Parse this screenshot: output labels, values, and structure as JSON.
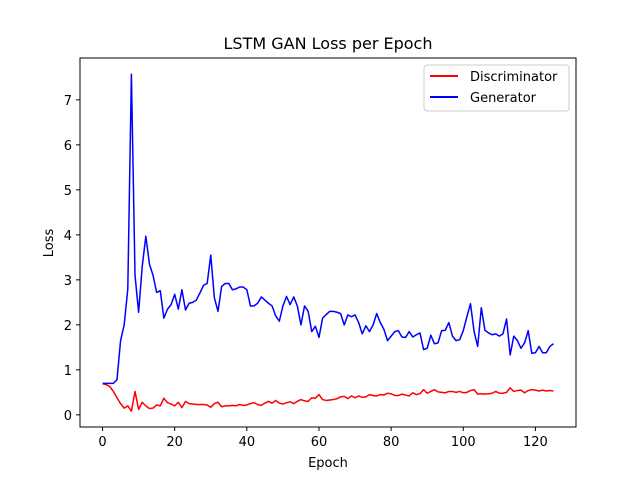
{
  "chart_data": {
    "type": "line",
    "title": "LSTM GAN Loss per Epoch",
    "xlabel": "Epoch",
    "ylabel": "Loss",
    "xlim": [
      -6.25,
      131.25
    ],
    "ylim": [
      -0.27,
      7.93
    ],
    "xticks": [
      0,
      20,
      40,
      60,
      80,
      100,
      120
    ],
    "yticks": [
      0,
      1,
      2,
      3,
      4,
      5,
      6,
      7
    ],
    "grid": false,
    "legend_position": "upper right",
    "series": [
      {
        "name": "Discriminator",
        "color": "#ff0000",
        "x": [
          0,
          1,
          2,
          3,
          4,
          5,
          6,
          7,
          8,
          9,
          10,
          11,
          12,
          13,
          14,
          15,
          16,
          17,
          18,
          19,
          20,
          21,
          22,
          23,
          24,
          25,
          26,
          27,
          28,
          29,
          30,
          31,
          32,
          33,
          34,
          35,
          36,
          37,
          38,
          39,
          40,
          41,
          42,
          43,
          44,
          45,
          46,
          47,
          48,
          49,
          50,
          51,
          52,
          53,
          54,
          55,
          56,
          57,
          58,
          59,
          60,
          61,
          62,
          63,
          64,
          65,
          66,
          67,
          68,
          69,
          70,
          71,
          72,
          73,
          74,
          75,
          76,
          77,
          78,
          79,
          80,
          81,
          82,
          83,
          84,
          85,
          86,
          87,
          88,
          89,
          90,
          91,
          92,
          93,
          94,
          95,
          96,
          97,
          98,
          99,
          100,
          101,
          102,
          103,
          104,
          105,
          106,
          107,
          108,
          109,
          110,
          111,
          112,
          113,
          114,
          115,
          116,
          117,
          118,
          119,
          120,
          121,
          122,
          123,
          124,
          125
        ],
        "y": [
          0.69,
          0.67,
          0.63,
          0.52,
          0.38,
          0.25,
          0.15,
          0.2,
          0.08,
          0.52,
          0.12,
          0.28,
          0.2,
          0.14,
          0.15,
          0.22,
          0.2,
          0.37,
          0.27,
          0.24,
          0.2,
          0.28,
          0.16,
          0.3,
          0.25,
          0.24,
          0.23,
          0.23,
          0.23,
          0.22,
          0.17,
          0.25,
          0.28,
          0.18,
          0.2,
          0.2,
          0.21,
          0.2,
          0.23,
          0.21,
          0.22,
          0.25,
          0.27,
          0.23,
          0.21,
          0.26,
          0.3,
          0.26,
          0.32,
          0.26,
          0.24,
          0.27,
          0.29,
          0.25,
          0.3,
          0.34,
          0.31,
          0.3,
          0.38,
          0.37,
          0.45,
          0.34,
          0.32,
          0.33,
          0.34,
          0.36,
          0.4,
          0.41,
          0.36,
          0.42,
          0.38,
          0.42,
          0.39,
          0.4,
          0.45,
          0.43,
          0.42,
          0.45,
          0.44,
          0.48,
          0.47,
          0.43,
          0.43,
          0.46,
          0.44,
          0.42,
          0.49,
          0.45,
          0.47,
          0.56,
          0.48,
          0.52,
          0.56,
          0.51,
          0.5,
          0.49,
          0.52,
          0.52,
          0.5,
          0.52,
          0.49,
          0.5,
          0.54,
          0.56,
          0.46,
          0.47,
          0.46,
          0.47,
          0.48,
          0.52,
          0.48,
          0.48,
          0.5,
          0.6,
          0.52,
          0.54,
          0.55,
          0.49,
          0.54,
          0.56,
          0.55,
          0.53,
          0.55,
          0.53,
          0.54,
          0.53
        ]
      },
      {
        "name": "Generator",
        "color": "#0000ff",
        "x": [
          0,
          1,
          2,
          3,
          4,
          5,
          6,
          7,
          8,
          9,
          10,
          11,
          12,
          13,
          14,
          15,
          16,
          17,
          18,
          19,
          20,
          21,
          22,
          23,
          24,
          25,
          26,
          27,
          28,
          29,
          30,
          31,
          32,
          33,
          34,
          35,
          36,
          37,
          38,
          39,
          40,
          41,
          42,
          43,
          44,
          45,
          46,
          47,
          48,
          49,
          50,
          51,
          52,
          53,
          54,
          55,
          56,
          57,
          58,
          59,
          60,
          61,
          62,
          63,
          64,
          65,
          66,
          67,
          68,
          69,
          70,
          71,
          72,
          73,
          74,
          75,
          76,
          77,
          78,
          79,
          80,
          81,
          82,
          83,
          84,
          85,
          86,
          87,
          88,
          89,
          90,
          91,
          92,
          93,
          94,
          95,
          96,
          97,
          98,
          99,
          100,
          101,
          102,
          103,
          104,
          105,
          106,
          107,
          108,
          109,
          110,
          111,
          112,
          113,
          114,
          115,
          116,
          117,
          118,
          119,
          120,
          121,
          122,
          123,
          124,
          125
        ],
        "y": [
          0.7,
          0.7,
          0.7,
          0.7,
          0.78,
          1.65,
          2.0,
          2.8,
          7.57,
          3.1,
          2.28,
          3.3,
          3.97,
          3.35,
          3.1,
          2.72,
          2.76,
          2.15,
          2.35,
          2.45,
          2.68,
          2.35,
          2.78,
          2.33,
          2.48,
          2.5,
          2.55,
          2.71,
          2.88,
          2.92,
          3.55,
          2.6,
          2.3,
          2.85,
          2.92,
          2.92,
          2.78,
          2.8,
          2.84,
          2.84,
          2.78,
          2.42,
          2.42,
          2.48,
          2.62,
          2.55,
          2.48,
          2.42,
          2.2,
          2.08,
          2.42,
          2.63,
          2.45,
          2.62,
          2.42,
          2.0,
          2.42,
          2.3,
          1.85,
          1.97,
          1.72,
          2.15,
          2.23,
          2.3,
          2.3,
          2.28,
          2.25,
          2.0,
          2.22,
          2.18,
          2.22,
          2.05,
          1.8,
          1.98,
          1.85,
          2.0,
          2.25,
          2.05,
          1.9,
          1.65,
          1.75,
          1.85,
          1.87,
          1.73,
          1.72,
          1.85,
          1.73,
          1.78,
          1.82,
          1.45,
          1.48,
          1.77,
          1.58,
          1.6,
          1.87,
          1.88,
          2.05,
          1.75,
          1.65,
          1.67,
          1.87,
          2.18,
          2.47,
          1.85,
          1.52,
          2.38,
          1.88,
          1.82,
          1.78,
          1.8,
          1.75,
          1.8,
          2.13,
          1.33,
          1.75,
          1.65,
          1.48,
          1.6,
          1.87,
          1.37,
          1.38,
          1.52,
          1.38,
          1.38,
          1.52,
          1.58
        ]
      }
    ]
  }
}
